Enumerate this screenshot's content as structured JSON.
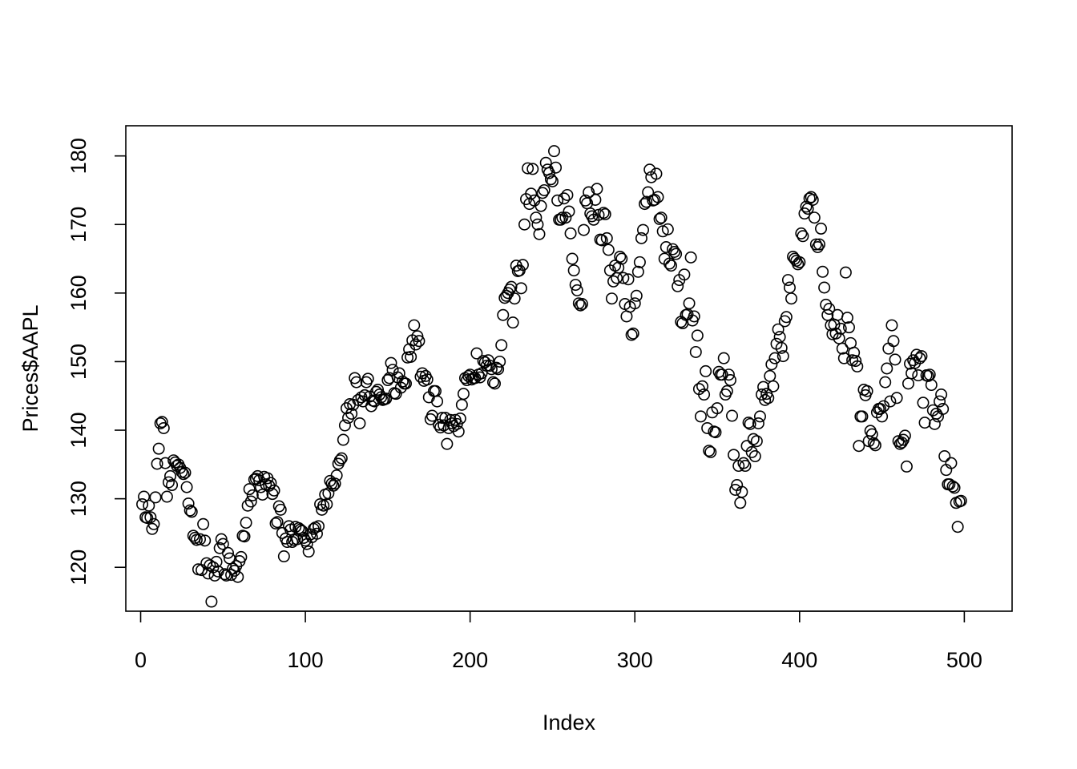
{
  "chart_data": {
    "type": "scatter",
    "title": "",
    "xlabel": "Index",
    "ylabel": "Prices$AAPL",
    "xlim": [
      -9,
      529
    ],
    "ylim": [
      113.6,
      184.4
    ],
    "xticks": [
      0,
      100,
      200,
      300,
      400,
      500
    ],
    "xtick_labels": [
      "0",
      "100",
      "200",
      "300",
      "400",
      "500"
    ],
    "yticks": [
      120,
      130,
      140,
      150,
      160,
      170,
      180
    ],
    "ytick_labels": [
      "120",
      "130",
      "140",
      "150",
      "160",
      "170",
      "180"
    ],
    "grid": false,
    "legend": "none",
    "marker": "open-circle",
    "color": "#000000",
    "x_start": 1,
    "x_step": 1,
    "y": [
      129.2,
      130.3,
      127.3,
      127.2,
      129.0,
      127.3,
      125.6,
      126.3,
      130.2,
      135.1,
      137.3,
      141.0,
      141.2,
      140.3,
      135.2,
      130.3,
      132.4,
      133.3,
      132.0,
      135.6,
      135.3,
      134.8,
      135.0,
      134.5,
      133.9,
      133.6,
      133.8,
      131.7,
      129.3,
      128.3,
      128.1,
      124.6,
      124.3,
      124.0,
      119.7,
      124.1,
      119.6,
      126.3,
      123.9,
      120.6,
      119.1,
      120.3,
      115.0,
      120.0,
      118.8,
      120.8,
      119.4,
      122.8,
      124.1,
      123.4,
      119.0,
      118.8,
      122.1,
      121.3,
      118.9,
      119.8,
      119.5,
      120.2,
      118.6,
      120.9,
      121.5,
      124.6,
      124.5,
      126.5,
      129.0,
      131.4,
      129.6,
      130.5,
      132.8,
      132.9,
      133.3,
      132.7,
      131.7,
      130.6,
      133.2,
      132.1,
      133.0,
      131.9,
      132.3,
      130.7,
      131.2,
      126.4,
      126.6,
      128.9,
      128.4,
      125.0,
      121.6,
      124.2,
      123.7,
      126.0,
      125.5,
      123.7,
      124.0,
      125.9,
      124.1,
      125.7,
      125.5,
      125.3,
      124.3,
      123.9,
      123.4,
      122.3,
      124.8,
      124.4,
      125.6,
      125.8,
      124.9,
      126.0,
      129.2,
      128.4,
      129.0,
      130.6,
      129.2,
      130.8,
      132.6,
      132.2,
      131.9,
      132.2,
      133.4,
      135.1,
      135.6,
      135.9,
      138.6,
      140.7,
      143.2,
      141.8,
      143.8,
      142.4,
      143.7,
      147.6,
      147.0,
      144.4,
      141.0,
      144.8,
      144.2,
      145.1,
      147.0,
      147.5,
      144.9,
      143.5,
      144.3,
      144.2,
      145.6,
      145.9,
      145.2,
      144.8,
      144.4,
      144.5,
      144.6,
      147.3,
      147.6,
      149.8,
      148.8,
      145.4,
      145.3,
      147.7,
      148.3,
      146.2,
      147.1,
      146.8,
      146.8,
      150.6,
      151.8,
      150.7,
      153.1,
      155.3,
      152.5,
      153.7,
      153.0,
      147.8,
      148.3,
      147.2,
      147.9,
      147.4,
      144.8,
      141.6,
      142.1,
      145.7,
      145.7,
      144.2,
      140.8,
      140.4,
      141.8,
      140.7,
      141.8,
      138.0,
      140.3,
      141.5,
      141.0,
      140.6,
      141.5,
      140.9,
      139.8,
      141.7,
      143.7,
      145.3,
      147.6,
      147.3,
      147.9,
      148.1,
      147.4,
      147.6,
      147.6,
      151.2,
      148.1,
      147.7,
      148.3,
      150.1,
      149.9,
      149.4,
      150.2,
      149.4,
      148.9,
      147.0,
      146.8,
      149.1,
      148.9,
      150.0,
      152.4,
      156.8,
      159.3,
      159.6,
      160.0,
      160.5,
      160.9,
      155.7,
      159.2,
      164.0,
      163.2,
      163.3,
      160.7,
      164.1,
      170.0,
      173.7,
      178.2,
      173.0,
      174.5,
      178.1,
      173.5,
      171.0,
      170.0,
      168.6,
      172.7,
      174.6,
      175.0,
      179.0,
      178.0,
      177.5,
      176.6,
      176.3,
      180.7,
      178.3,
      173.5,
      170.7,
      170.7,
      171.0,
      173.8,
      171.0,
      174.3,
      171.9,
      168.7,
      165.0,
      163.3,
      161.2,
      160.4,
      158.5,
      158.2,
      158.4,
      169.2,
      173.5,
      173.1,
      174.7,
      171.6,
      171.2,
      170.7,
      173.6,
      175.2,
      171.4,
      167.8,
      167.7,
      171.7,
      171.5,
      168.0,
      166.3,
      163.3,
      159.2,
      161.7,
      164.0,
      162.2,
      163.7,
      165.3,
      165.0,
      162.2,
      158.4,
      156.6,
      162.0,
      158.0,
      153.9,
      154.1,
      158.5,
      159.6,
      163.1,
      164.5,
      168.0,
      169.2,
      173.0,
      173.3,
      174.7,
      178.0,
      176.9,
      173.5,
      173.6,
      177.4,
      174.0,
      170.8,
      171.0,
      169.0,
      165.0,
      166.7,
      169.3,
      164.3,
      164.0,
      166.4,
      166.0,
      165.7,
      161.0,
      161.9,
      155.8,
      155.6,
      162.7,
      156.8,
      156.9,
      158.5,
      165.2,
      156.0,
      156.6,
      151.4,
      153.8,
      146.0,
      142.0,
      146.4,
      145.2,
      148.6,
      140.3,
      137.0,
      136.8,
      142.6,
      139.8,
      139.7,
      143.2,
      148.5,
      148.1,
      148.1,
      150.5,
      145.2,
      145.7,
      148.1,
      147.3,
      142.1,
      136.4,
      131.3,
      132.0,
      134.8,
      129.4,
      131.0,
      135.2,
      134.8,
      137.7,
      141.1,
      140.9,
      136.8,
      138.7,
      136.2,
      138.4,
      141.0,
      142.0,
      145.2,
      146.3,
      144.4,
      145.3,
      144.7,
      147.9,
      149.6,
      146.4,
      150.5,
      152.6,
      154.7,
      153.6,
      152.0,
      150.8,
      155.9,
      156.5,
      161.9,
      160.8,
      159.2,
      165.3,
      165.0,
      164.7,
      164.2,
      164.5,
      168.7,
      168.3,
      171.6,
      172.6,
      172.3,
      173.8,
      174.0,
      173.6,
      171.0,
      167.1,
      166.7,
      167.1,
      169.4,
      163.1,
      160.8,
      158.3,
      156.8,
      157.7,
      155.3,
      154.0,
      155.4,
      154.1,
      156.8,
      153.4,
      154.8,
      151.9,
      150.5,
      163.0,
      156.4,
      155.0,
      152.7,
      150.2,
      151.3,
      150.1,
      149.3,
      137.7,
      142.0,
      142.0,
      145.9,
      145.1,
      145.7,
      138.4,
      139.9,
      139.4,
      138.1,
      137.8,
      142.6,
      143.1,
      143.1,
      142.0,
      143.5,
      147.0,
      149.0,
      151.9,
      144.2,
      155.3,
      153.0,
      150.3,
      144.7,
      138.4,
      138.0,
      138.2,
      138.6,
      139.2,
      134.7,
      146.8,
      149.7,
      148.3,
      150.2,
      149.8,
      151.0,
      148.0,
      150.5,
      150.8,
      144.0,
      141.1,
      148.0,
      147.9,
      148.1,
      146.6,
      142.9,
      140.9,
      142.4,
      142.0,
      144.2,
      145.2,
      143.1,
      136.2,
      134.2,
      132.1,
      132.1,
      135.2,
      131.8,
      131.6,
      129.4,
      125.9,
      129.6,
      129.7
    ]
  }
}
